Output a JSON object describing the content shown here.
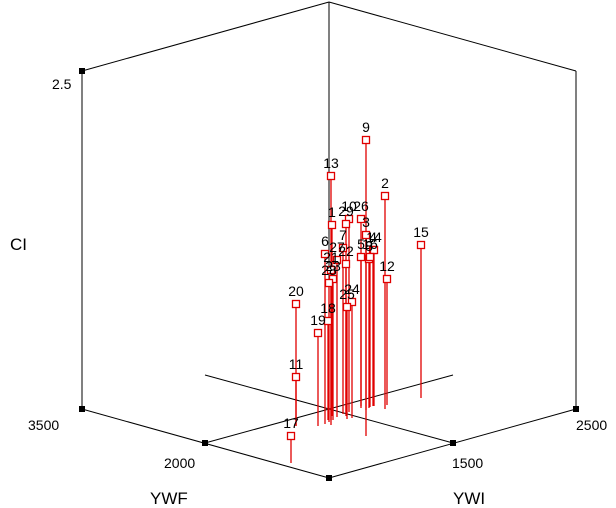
{
  "chart_data": {
    "type": "scatter",
    "subtype": "3d-drop-line",
    "title": "",
    "axes": {
      "x": {
        "label": "YWI",
        "ticks": [
          "1500",
          "2500"
        ]
      },
      "z": {
        "label": "YWF",
        "ticks": [
          "2000",
          "3500"
        ]
      },
      "y": {
        "label": "CI",
        "ticks": [
          "2.5"
        ]
      }
    },
    "series": [
      {
        "color": "#e00000",
        "marker": "open-square",
        "points": [
          {
            "label": "1"
          },
          {
            "label": "2"
          },
          {
            "label": "3"
          },
          {
            "label": "4"
          },
          {
            "label": "5"
          },
          {
            "label": "6"
          },
          {
            "label": "7"
          },
          {
            "label": "8"
          },
          {
            "label": "9"
          },
          {
            "label": "10"
          },
          {
            "label": "11"
          },
          {
            "label": "12"
          },
          {
            "label": "13"
          },
          {
            "label": "14"
          },
          {
            "label": "15"
          },
          {
            "label": "16"
          },
          {
            "label": "17"
          },
          {
            "label": "18"
          },
          {
            "label": "19"
          },
          {
            "label": "20"
          },
          {
            "label": "21"
          },
          {
            "label": "22"
          },
          {
            "label": "23"
          },
          {
            "label": "24"
          },
          {
            "label": "25"
          },
          {
            "label": "26"
          },
          {
            "label": "27"
          },
          {
            "label": "28"
          },
          {
            "label": "29"
          }
        ]
      }
    ],
    "grid": "floor",
    "legend": "none"
  }
}
